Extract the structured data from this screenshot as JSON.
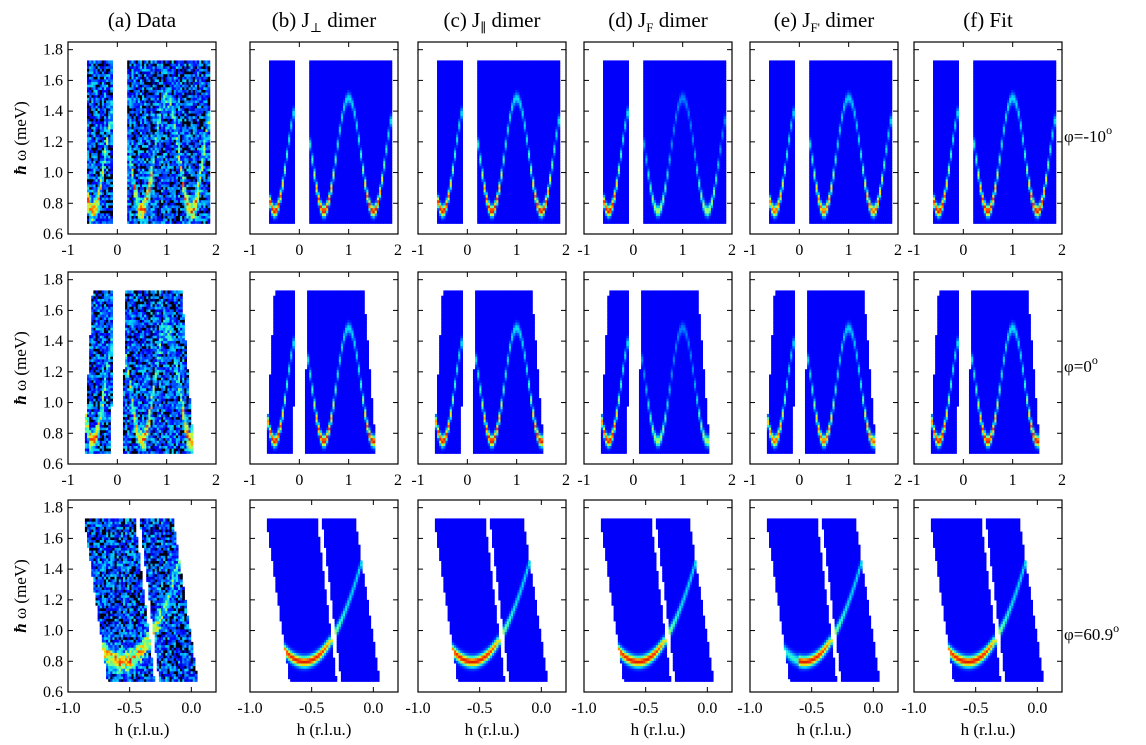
{
  "chart_data": {
    "type": "heatmap",
    "columns": [
      {
        "title": "(a) Data",
        "title_sub": "",
        "kind": "data"
      },
      {
        "title": "(b) J",
        "title_sub": "⊥",
        "title_rest": " dimer",
        "kind": "model"
      },
      {
        "title": "(c) J",
        "title_sub": "∥",
        "title_rest": " dimer",
        "kind": "model"
      },
      {
        "title": "(d) J",
        "title_sub": "F",
        "title_rest": " dimer",
        "kind": "model"
      },
      {
        "title": "(e) J",
        "title_sub": "F'",
        "title_rest": " dimer",
        "kind": "model"
      },
      {
        "title": "(f) Fit",
        "title_sub": "",
        "kind": "model"
      }
    ],
    "rows": [
      {
        "label": "φ=-10",
        "label_sup": "o",
        "xlim": [
          -1,
          2
        ],
        "xticks": [
          "-1",
          "0",
          "1",
          "2"
        ],
        "xticks_val": [
          -1,
          0,
          1,
          2
        ],
        "xlabel": ""
      },
      {
        "label": "φ=0",
        "label_sup": "o",
        "xlim": [
          -1,
          2
        ],
        "xticks": [
          "-1",
          "0",
          "1",
          "2"
        ],
        "xticks_val": [
          -1,
          0,
          1,
          2
        ],
        "xlabel": ""
      },
      {
        "label": "φ=60.9",
        "label_sup": "o",
        "xlim": [
          -1.0,
          0.2
        ],
        "xticks": [
          "-1.0",
          "-0.5",
          "0.0"
        ],
        "xticks_val": [
          -1.0,
          -0.5,
          0.0
        ],
        "xlabel": "h (r.l.u.)"
      }
    ],
    "ylabel_symbol": "ħ",
    "ylabel": "ω (meV)",
    "ylim": [
      0.6,
      1.85
    ],
    "yticks": [
      "0.6",
      "0.8",
      "1.0",
      "1.2",
      "1.4",
      "1.6",
      "1.8"
    ],
    "yticks_val": [
      0.6,
      0.8,
      1.0,
      1.2,
      1.4,
      1.6,
      1.8
    ],
    "energy_range": [
      0.67,
      1.73
    ],
    "colormap": [
      "#00008f",
      "#0000ff",
      "#0060ff",
      "#00d0ff",
      "#40ffbf",
      "#c0ff40",
      "#ffd000",
      "#ff4000",
      "#c00000"
    ],
    "background_color": "#0a1cf5"
  }
}
